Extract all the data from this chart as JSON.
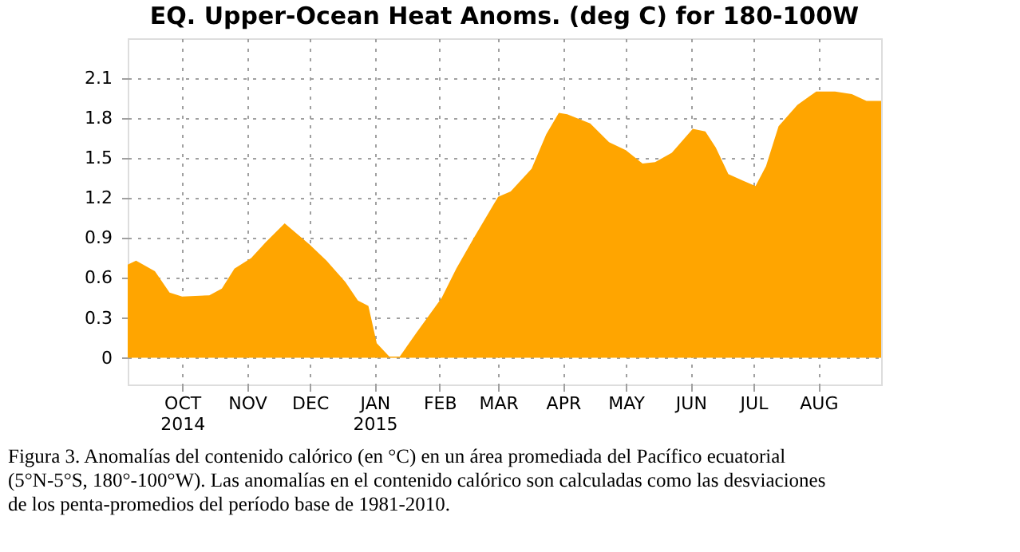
{
  "chart_data": {
    "type": "area",
    "title": "EQ. Upper-Ocean Heat Anoms. (deg C) for 180-100W",
    "x": [
      "2014-09-05",
      "2014-09-09",
      "2014-09-18",
      "2014-09-25",
      "2014-10-01",
      "2014-10-14",
      "2014-10-20",
      "2014-10-26",
      "2014-11-03",
      "2014-11-10",
      "2014-11-19",
      "2014-12-01",
      "2014-12-09",
      "2014-12-18",
      "2014-12-24",
      "2014-12-29",
      "2015-01-02",
      "2015-01-08",
      "2015-01-13",
      "2015-01-21",
      "2015-02-02",
      "2015-02-09",
      "2015-02-17",
      "2015-03-01",
      "2015-03-07",
      "2015-03-17",
      "2015-03-24",
      "2015-03-30",
      "2015-04-03",
      "2015-04-14",
      "2015-04-23",
      "2015-05-01",
      "2015-05-09",
      "2015-05-15",
      "2015-05-23",
      "2015-06-02",
      "2015-06-08",
      "2015-06-13",
      "2015-06-19",
      "2015-06-26",
      "2015-07-02",
      "2015-07-07",
      "2015-07-13",
      "2015-07-22",
      "2015-07-31",
      "2015-08-09",
      "2015-08-17",
      "2015-08-24",
      "2015-08-31"
    ],
    "values": [
      0.7,
      0.73,
      0.65,
      0.49,
      0.46,
      0.47,
      0.52,
      0.67,
      0.75,
      0.87,
      1.01,
      0.85,
      0.73,
      0.57,
      0.43,
      0.39,
      0.11,
      0.01,
      0.01,
      0.19,
      0.45,
      0.67,
      0.89,
      1.21,
      1.25,
      1.42,
      1.68,
      1.84,
      1.83,
      1.76,
      1.62,
      1.56,
      1.46,
      1.47,
      1.54,
      1.72,
      1.7,
      1.58,
      1.38,
      1.33,
      1.29,
      1.44,
      1.74,
      1.9,
      2.0,
      2.0,
      1.98,
      1.93,
      1.93
    ],
    "color": "#ffa500",
    "xlim": [
      "2014-09-05",
      "2015-08-31"
    ],
    "xticks": [
      {
        "value": "2014-10-01",
        "label": "OCT\n2014"
      },
      {
        "value": "2014-11-01",
        "label": "NOV"
      },
      {
        "value": "2014-12-01",
        "label": "DEC"
      },
      {
        "value": "2015-01-01",
        "label": "JAN\n2015"
      },
      {
        "value": "2015-02-01",
        "label": "FEB"
      },
      {
        "value": "2015-03-01",
        "label": "MAR"
      },
      {
        "value": "2015-04-01",
        "label": "APR"
      },
      {
        "value": "2015-05-01",
        "label": "MAY"
      },
      {
        "value": "2015-06-01",
        "label": "JUN"
      },
      {
        "value": "2015-07-01",
        "label": "JUL"
      },
      {
        "value": "2015-08-01",
        "label": "AUG"
      }
    ],
    "ylim": [
      -0.2,
      2.4
    ],
    "yticks": [
      0,
      0.3,
      0.6,
      0.9,
      1.2,
      1.5,
      1.8,
      2.1
    ],
    "grid": true,
    "annotations": [
      "Figura 3. Anomalías del contenido calórico (en °C) en un área promediada del Pacífico ecuatorial (5°N-5°S, 180°-100°W). Las anomalías en el contenido calórico son calculadas como las desviaciones de los penta-promedios del período base de 1981-2010."
    ]
  }
}
